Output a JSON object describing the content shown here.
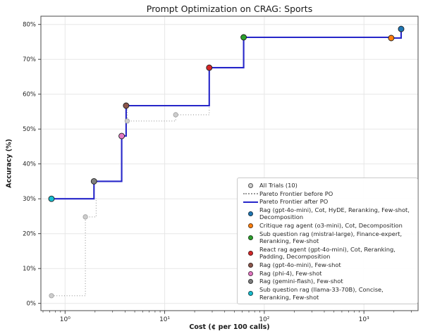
{
  "chart_data": {
    "type": "line",
    "title": "Prompt Optimization on CRAG: Sports",
    "xlabel": "Cost (¢ per 100 calls)",
    "ylabel": "Accuracy (%)",
    "x_scale": "log",
    "xlim": [
      0.57,
      3500
    ],
    "ylim": [
      -2,
      82.4
    ],
    "grid": true,
    "legend_position": "lower right",
    "x_ticks": [
      {
        "value": 1,
        "label": "10⁰"
      },
      {
        "value": 10,
        "label": "10¹"
      },
      {
        "value": 100,
        "label": "10²"
      },
      {
        "value": 1000,
        "label": "10³"
      }
    ],
    "y_ticks": [
      {
        "value": 0,
        "label": "0%"
      },
      {
        "value": 10,
        "label": "10%"
      },
      {
        "value": 20,
        "label": "20%"
      },
      {
        "value": 30,
        "label": "30%"
      },
      {
        "value": 40,
        "label": "40%"
      },
      {
        "value": 50,
        "label": "50%"
      },
      {
        "value": 60,
        "label": "60%"
      },
      {
        "value": 70,
        "label": "70%"
      },
      {
        "value": 80,
        "label": "80%"
      }
    ],
    "all_trials": {
      "label": "All Trials (10)",
      "color": "#cdcdcd",
      "edge_color": "#9e9e9e",
      "points": [
        [
          0.73,
          2.2
        ],
        [
          1.6,
          24.8
        ],
        [
          4.2,
          52.3
        ],
        [
          12.9,
          54.1
        ]
      ]
    },
    "pareto_before": {
      "label": "Pareto Frontier before PO",
      "color": "#999999",
      "style": "dotted",
      "visible_segments": [
        [
          [
            0.73,
            2.2
          ],
          [
            1.6,
            2.2
          ],
          [
            1.6,
            24.8
          ],
          [
            2.05,
            24.8
          ],
          [
            2.05,
            30.2
          ]
        ],
        [
          [
            4.2,
            55.6
          ],
          [
            4.2,
            52.3
          ],
          [
            12.9,
            52.3
          ],
          [
            12.9,
            54.1
          ],
          [
            28,
            54.1
          ],
          [
            28,
            56.4
          ]
        ]
      ]
    },
    "pareto_after": {
      "label": "Pareto Frontier after PO",
      "color": "#2626c9",
      "style": "solid",
      "step": "post",
      "points": [
        [
          0.73,
          30.0
        ],
        [
          1.95,
          35.0
        ],
        [
          3.7,
          48.0
        ],
        [
          4.1,
          56.7
        ],
        [
          28,
          67.6
        ],
        [
          62,
          76.3
        ],
        [
          1880,
          76.1
        ],
        [
          2365,
          78.7
        ]
      ]
    },
    "frontier_points": [
      {
        "label": "Sub question rag (llama-33-70B), Concise, Reranking, Few-shot",
        "color": "#17becf",
        "cost": 0.73,
        "accuracy": 30.0
      },
      {
        "label": "Rag (gemini-flash), Few-shot",
        "color": "#7f7f7f",
        "cost": 1.95,
        "accuracy": 35.0
      },
      {
        "label": "Rag (phi-4), Few-shot",
        "color": "#e377c2",
        "cost": 3.7,
        "accuracy": 48.0
      },
      {
        "label": "Rag (gpt-4o-mini), Few-shot",
        "color": "#8c564b",
        "cost": 4.1,
        "accuracy": 56.7
      },
      {
        "label": "React rag agent (gpt-4o-mini), Cot, Reranking, Padding, Decomposition",
        "color": "#d62728",
        "cost": 28,
        "accuracy": 67.6
      },
      {
        "label": "Sub question rag (mistral-large), Finance-expert, Reranking, Few-shot",
        "color": "#2ca02c",
        "cost": 62,
        "accuracy": 76.3
      },
      {
        "label": "Critique rag agent (o3-mini), Cot, Decomposition",
        "color": "#ff7f0e",
        "cost": 1880,
        "accuracy": 76.1
      },
      {
        "label": "Rag (gpt-4o-mini), Cot, HyDE, Reranking, Few-shot, Decomposition",
        "color": "#1f77b4",
        "cost": 2365,
        "accuracy": 78.7
      }
    ],
    "legend_entries": [
      {
        "swatch": "dot",
        "color": "#cdcdcd",
        "label": "All Trials (10)"
      },
      {
        "swatch": "dotted-line",
        "color": "#999999",
        "label": "Pareto Frontier before PO"
      },
      {
        "swatch": "line",
        "color": "#2626c9",
        "label": "Pareto Frontier after PO"
      },
      {
        "swatch": "dot",
        "color": "#1f77b4",
        "label": "Rag (gpt-4o-mini), Cot, HyDE, Reranking, Few-shot, Decomposition"
      },
      {
        "swatch": "dot",
        "color": "#ff7f0e",
        "label": "Critique rag agent (o3-mini), Cot, Decomposition"
      },
      {
        "swatch": "dot",
        "color": "#2ca02c",
        "label": "Sub question rag (mistral-large), Finance-expert, Reranking, Few-shot"
      },
      {
        "swatch": "dot",
        "color": "#d62728",
        "label": "React rag agent (gpt-4o-mini), Cot, Reranking, Padding, Decomposition"
      },
      {
        "swatch": "dot",
        "color": "#8c564b",
        "label": "Rag (gpt-4o-mini), Few-shot"
      },
      {
        "swatch": "dot",
        "color": "#e377c2",
        "label": "Rag (phi-4), Few-shot"
      },
      {
        "swatch": "dot",
        "color": "#7f7f7f",
        "label": "Rag (gemini-flash), Few-shot"
      },
      {
        "swatch": "dot",
        "color": "#17becf",
        "label": "Sub question rag (llama-33-70B), Concise, Reranking, Few-shot"
      }
    ]
  }
}
